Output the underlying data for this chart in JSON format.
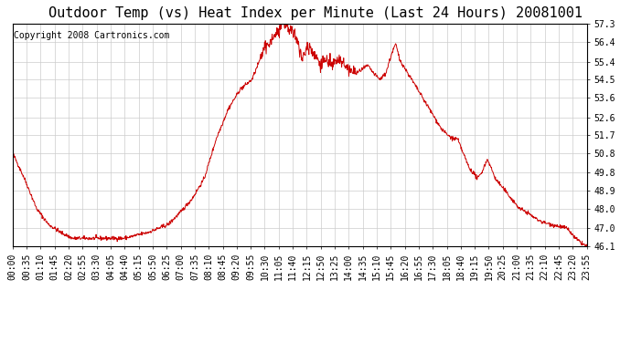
{
  "title": "Outdoor Temp (vs) Heat Index per Minute (Last 24 Hours) 20081001",
  "copyright": "Copyright 2008 Cartronics.com",
  "line_color": "#cc0000",
  "background_color": "#ffffff",
  "grid_color": "#cccccc",
  "title_fontsize": 11,
  "copyright_fontsize": 7,
  "tick_fontsize": 7,
  "ylabel_right": true,
  "ylim": [
    46.1,
    57.3
  ],
  "yticks": [
    46.1,
    47.0,
    48.0,
    48.9,
    49.8,
    50.8,
    51.7,
    52.6,
    53.6,
    54.5,
    55.4,
    56.4,
    57.3
  ],
  "xtick_labels": [
    "00:00",
    "00:35",
    "01:10",
    "01:45",
    "02:20",
    "02:55",
    "03:30",
    "04:05",
    "04:40",
    "05:15",
    "05:50",
    "06:25",
    "07:00",
    "07:35",
    "08:10",
    "08:45",
    "09:20",
    "09:55",
    "10:30",
    "11:05",
    "11:40",
    "12:15",
    "12:50",
    "13:25",
    "14:00",
    "14:35",
    "15:10",
    "15:45",
    "16:20",
    "16:55",
    "17:30",
    "18:05",
    "18:40",
    "19:15",
    "19:50",
    "20:25",
    "21:00",
    "21:35",
    "22:10",
    "22:45",
    "23:20",
    "23:55"
  ]
}
